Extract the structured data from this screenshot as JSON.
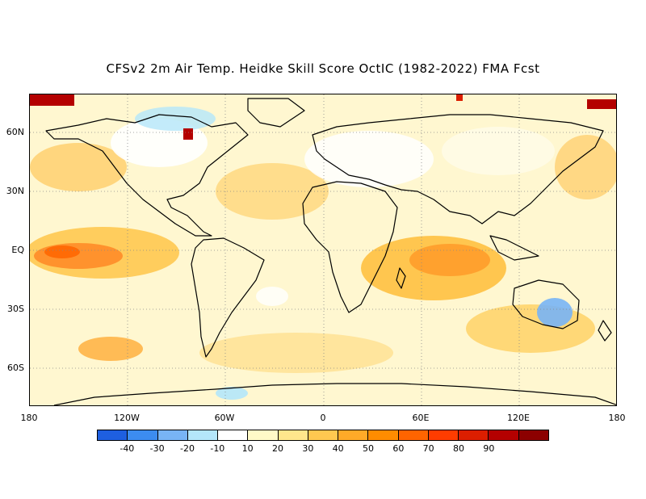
{
  "title": "CFSv2 2m Air Temp. Heidke Skill Score OctIC (1982-2022) FMA Fcst",
  "lat_labels": [
    "60N",
    "30N",
    "EQ",
    "30S",
    "60S"
  ],
  "lon_labels": [
    "180",
    "120W",
    "60W",
    "0",
    "60E",
    "120E",
    "180"
  ],
  "colorbar": {
    "colors": [
      "#1e5fe0",
      "#3c8cf0",
      "#78b4f5",
      "#b4e6fa",
      "#ffffff",
      "#fffac8",
      "#ffe68c",
      "#ffc850",
      "#ffaa28",
      "#ff8c00",
      "#ff6400",
      "#ff3c00",
      "#dc1e00",
      "#b40000",
      "#8c0000"
    ],
    "labels": [
      "-40",
      "-30",
      "-20",
      "-10",
      "10",
      "20",
      "30",
      "40",
      "50",
      "60",
      "70",
      "80",
      "90"
    ]
  }
}
